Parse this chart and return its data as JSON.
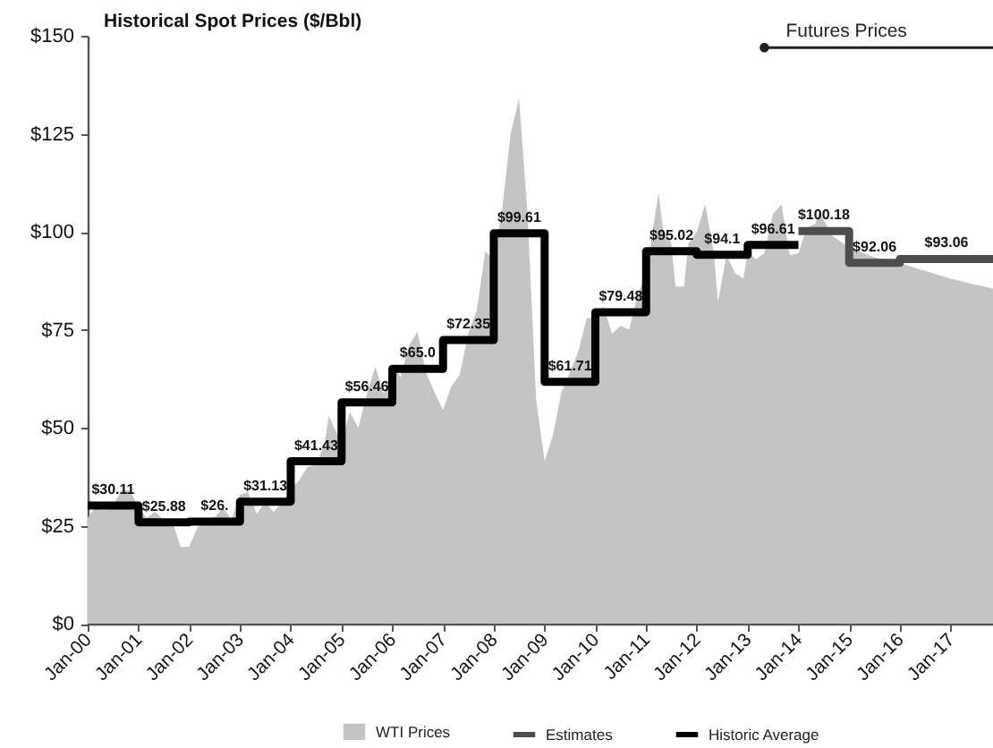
{
  "chart_data": {
    "type": "area",
    "title": "Historical Spot Prices ($/Bbl)",
    "x": [
      "2000-01",
      "2000-03",
      "2000-05",
      "2000-07",
      "2000-09",
      "2000-11",
      "2001-01",
      "2001-03",
      "2001-05",
      "2001-07",
      "2001-09",
      "2001-11",
      "2002-01",
      "2002-03",
      "2002-05",
      "2002-07",
      "2002-09",
      "2002-11",
      "2003-01",
      "2003-03",
      "2003-05",
      "2003-07",
      "2003-09",
      "2003-11",
      "2004-01",
      "2004-03",
      "2004-05",
      "2004-07",
      "2004-09",
      "2004-10",
      "2005-01",
      "2005-03",
      "2005-05",
      "2005-07",
      "2005-09",
      "2005-11",
      "2006-01",
      "2006-03",
      "2006-05",
      "2006-07",
      "2006-09",
      "2006-11",
      "2007-01",
      "2007-03",
      "2007-05",
      "2007-07",
      "2007-09",
      "2007-11",
      "2008-01",
      "2008-03",
      "2008-05",
      "2008-07",
      "2008-09",
      "2008-11",
      "2009-01",
      "2009-03",
      "2009-05",
      "2009-07",
      "2009-09",
      "2009-11",
      "2010-01",
      "2010-03",
      "2010-05",
      "2010-07",
      "2010-09",
      "2010-11",
      "2011-01",
      "2011-03",
      "2011-04",
      "2011-05",
      "2011-07",
      "2011-08",
      "2011-10",
      "2011-11",
      "2012-01",
      "2012-03",
      "2012-05",
      "2012-06",
      "2012-08",
      "2012-10",
      "2012-12",
      "2013-01",
      "2013-03",
      "2013-05",
      "2013-07",
      "2013-09",
      "2013-11",
      "2014-01",
      "2014-03",
      "2014-05",
      "2014-06",
      "2014-09",
      "2015-01",
      "2015-07",
      "2016-01",
      "2016-07",
      "2017-01",
      "2017-07",
      "2017-11"
    ],
    "series": [
      {
        "name": "WTI Prices",
        "color": "#c4c4c4",
        "values": [
          27,
          30,
          29,
          30,
          34,
          34,
          29.5,
          27,
          28.5,
          26.5,
          26,
          19.5,
          19.7,
          24.5,
          27,
          27,
          29.5,
          26.5,
          33,
          33.5,
          28,
          31,
          28.5,
          31,
          34.5,
          36.5,
          40,
          40.5,
          46,
          53,
          46,
          54,
          50,
          58.5,
          65.5,
          58.5,
          65.5,
          63,
          71,
          74.5,
          64,
          59,
          54.5,
          60.5,
          63.5,
          74,
          80,
          95,
          93,
          105.5,
          125,
          134,
          104,
          57,
          41.5,
          48,
          59,
          64,
          69.5,
          78,
          78,
          81,
          74,
          76,
          75,
          84,
          89,
          103,
          110,
          101,
          97,
          86,
          86,
          97,
          100,
          107,
          95,
          82,
          94,
          89.5,
          88,
          95,
          93,
          94.5,
          104.5,
          107,
          94,
          94.5,
          101,
          102,
          105,
          99,
          96,
          93.5,
          92,
          90,
          88,
          86.5,
          85.5
        ]
      },
      {
        "name": "Estimates",
        "type": "step",
        "color": "#4d4d4d",
        "x": [
          "2014-01",
          "2015-01",
          "2016-01",
          "2017-11"
        ],
        "values": [
          100.18,
          92.06,
          93.06,
          93.06
        ],
        "value_labels": [
          "$100.18",
          "$92.06",
          "$93.06",
          null
        ]
      },
      {
        "name": "Historic Average",
        "type": "step",
        "color": "#000000",
        "x": [
          "2000-01",
          "2001-01",
          "2002-01",
          "2003-01",
          "2004-01",
          "2005-01",
          "2006-01",
          "2007-01",
          "2008-01",
          "2009-01",
          "2010-01",
          "2011-01",
          "2012-01",
          "2013-01",
          "2014-01"
        ],
        "values": [
          30.11,
          25.88,
          26,
          31.13,
          41.43,
          56.46,
          65.0,
          72.35,
          99.61,
          61.71,
          79.48,
          95.02,
          94.1,
          96.61,
          96.61
        ],
        "value_labels": [
          "$30.11",
          "$25.88",
          "$26.",
          "$31.13",
          "$41.43",
          "$56.46",
          "$65.0",
          "$72.35",
          "$99.61",
          "$61.71",
          "$79.48",
          "$95.02",
          "$94.1",
          "$96.61",
          null
        ]
      }
    ],
    "xlim": [
      "2000-01",
      "2017-11"
    ],
    "xticks": [
      {
        "value": "2000-01",
        "label": "Jan-00"
      },
      {
        "value": "2001-01",
        "label": "Jan-01"
      },
      {
        "value": "2002-01",
        "label": "Jan-02"
      },
      {
        "value": "2003-01",
        "label": "Jan-03"
      },
      {
        "value": "2004-01",
        "label": "Jan-04"
      },
      {
        "value": "2005-01",
        "label": "Jan-05"
      },
      {
        "value": "2006-01",
        "label": "Jan-06"
      },
      {
        "value": "2007-01",
        "label": "Jan-07"
      },
      {
        "value": "2008-01",
        "label": "Jan-08"
      },
      {
        "value": "2009-01",
        "label": "Jan-09"
      },
      {
        "value": "2010-01",
        "label": "Jan-10"
      },
      {
        "value": "2011-01",
        "label": "Jan-11"
      },
      {
        "value": "2012-01",
        "label": "Jan-12"
      },
      {
        "value": "2013-01",
        "label": "Jan-13"
      },
      {
        "value": "2014-01",
        "label": "Jan-14"
      },
      {
        "value": "2015-01",
        "label": "Jan-15"
      },
      {
        "value": "2016-01",
        "label": "Jan-16"
      },
      {
        "value": "2017-01",
        "label": "Jan-17"
      }
    ],
    "ylim": [
      0,
      150
    ],
    "yticks": [
      {
        "value": 0,
        "label": "$0"
      },
      {
        "value": 25,
        "label": "$25"
      },
      {
        "value": 50,
        "label": "$50"
      },
      {
        "value": 75,
        "label": "$75"
      },
      {
        "value": 100,
        "label": "$100"
      },
      {
        "value": 125,
        "label": "$125"
      },
      {
        "value": 150,
        "label": "$150"
      }
    ],
    "annotations": [
      {
        "text": "Futures Prices",
        "x": "2013-05",
        "y": 147
      }
    ],
    "legend": "bottom",
    "grid": false
  }
}
